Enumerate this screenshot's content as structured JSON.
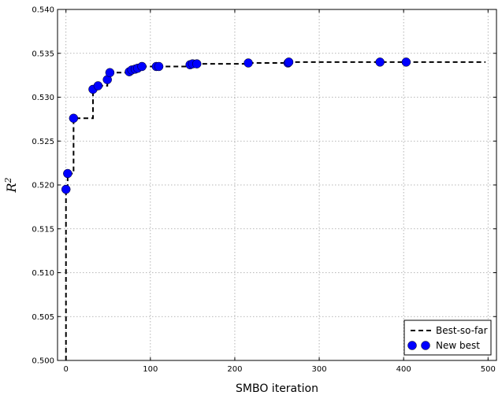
{
  "chart_data": {
    "type": "line",
    "xlabel": "SMBO iteration",
    "ylabel": "R",
    "ylabel_superscript": "2",
    "xlim": [
      -10,
      510
    ],
    "ylim": [
      0.5,
      0.54
    ],
    "x_ticks": [
      "0",
      "100",
      "200",
      "300",
      "400",
      "500"
    ],
    "y_ticks": [
      "0.500",
      "0.505",
      "0.510",
      "0.515",
      "0.520",
      "0.525",
      "0.530",
      "0.535",
      "0.540"
    ],
    "grid": true,
    "legend_position": "lower-right",
    "series": [
      {
        "name": "Best-so-far",
        "style": "dashed-step",
        "color": "#000000",
        "x": [
          0,
          0,
          2,
          2,
          9,
          9,
          32,
          32,
          38,
          38,
          49,
          49,
          52,
          52,
          75,
          75,
          78,
          78,
          82,
          82,
          85,
          85,
          90,
          90,
          107,
          107,
          110,
          110,
          147,
          147,
          150,
          150,
          155,
          155,
          216,
          216,
          263,
          263,
          264,
          264,
          372,
          372,
          403,
          403,
          497
        ],
        "y": [
          0.5,
          0.5195,
          0.5195,
          0.5213,
          0.5213,
          0.5276,
          0.5276,
          0.5309,
          0.5309,
          0.5313,
          0.5313,
          0.532,
          0.532,
          0.5328,
          0.5328,
          0.5329,
          0.5329,
          0.5331,
          0.5331,
          0.5332,
          0.5332,
          0.5333,
          0.5333,
          0.5335,
          0.5335,
          0.5335,
          0.5335,
          0.5335,
          0.5335,
          0.5337,
          0.5337,
          0.5338,
          0.5338,
          0.5338,
          0.5338,
          0.5339,
          0.5339,
          0.5339,
          0.5339,
          0.534,
          0.534,
          0.534,
          0.534,
          0.534,
          0.534
        ]
      },
      {
        "name": "New best",
        "style": "markers",
        "color": "#0000ff",
        "x": [
          0,
          2,
          9,
          32,
          38,
          49,
          52,
          75,
          78,
          82,
          85,
          90,
          107,
          110,
          147,
          150,
          155,
          216,
          263,
          264,
          372,
          403
        ],
        "y": [
          0.5195,
          0.5213,
          0.5276,
          0.5309,
          0.5313,
          0.532,
          0.5328,
          0.5329,
          0.5331,
          0.5332,
          0.5333,
          0.5335,
          0.5335,
          0.5335,
          0.5337,
          0.5338,
          0.5338,
          0.5339,
          0.5339,
          0.534,
          0.534,
          0.534
        ]
      }
    ]
  }
}
